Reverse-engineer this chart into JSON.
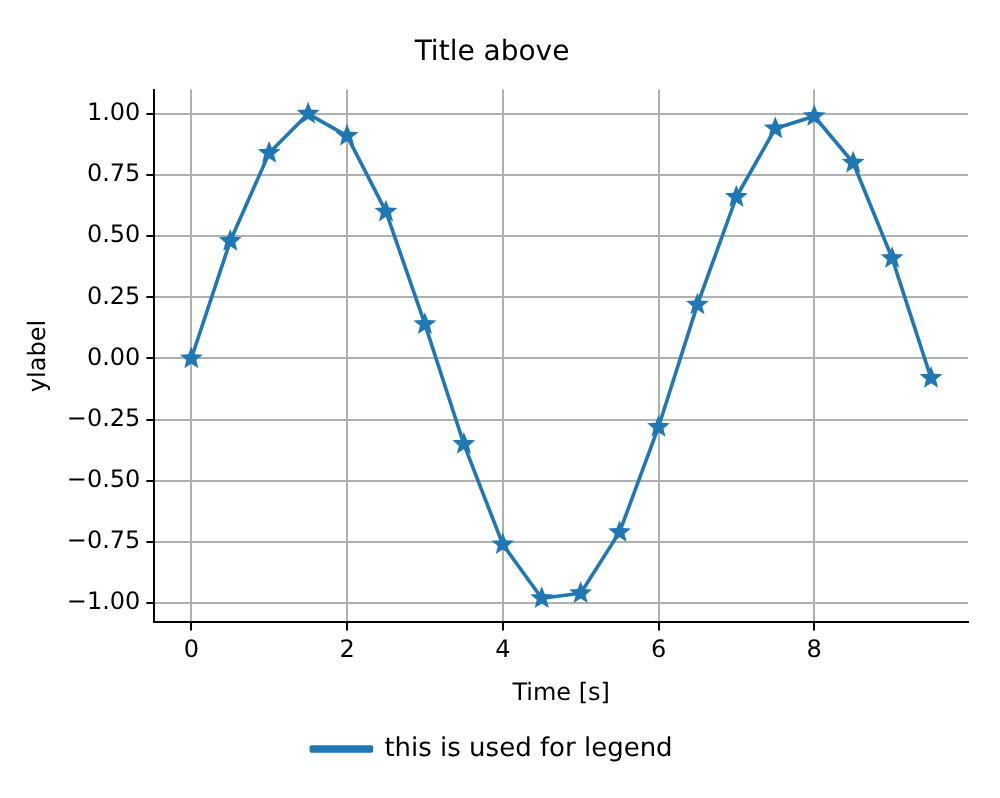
{
  "chart_data": {
    "type": "line",
    "title": "Title above",
    "xlabel": "Time [s]",
    "ylabel": "ylabel",
    "x": [
      0,
      0.5,
      1,
      1.5,
      2,
      2.5,
      3,
      3.5,
      4,
      4.5,
      5,
      5.5,
      6,
      6.5,
      7,
      7.5,
      8,
      8.5,
      9,
      9.5
    ],
    "series": [
      {
        "name": "this is used for legend",
        "color": "#1f77b4",
        "values": [
          0,
          0.48,
          0.84,
          1.0,
          0.91,
          0.6,
          0.14,
          -0.35,
          -0.76,
          -0.98,
          -0.96,
          -0.71,
          -0.28,
          0.22,
          0.66,
          0.94,
          0.99,
          0.8,
          0.41,
          -0.08
        ]
      }
    ],
    "xlim": [
      -0.475,
      9.975
    ],
    "xticks": [
      0,
      2,
      4,
      6,
      8
    ],
    "ylim": [
      -1.079,
      1.099
    ],
    "yticks": [
      {
        "value": -1,
        "label": "−1.00"
      },
      {
        "value": -0.75,
        "label": "−0.75"
      },
      {
        "value": -0.5,
        "label": "−0.50"
      },
      {
        "value": -0.25,
        "label": "−0.25"
      },
      {
        "value": 0,
        "label": "0.00"
      },
      {
        "value": 0.25,
        "label": "0.25"
      },
      {
        "value": 0.5,
        "label": "0.50"
      },
      {
        "value": 0.75,
        "label": "0.75"
      },
      {
        "value": 1,
        "label": "1.00"
      }
    ],
    "grid": true,
    "legend": "bottom",
    "marker": "star",
    "line_style": "solid"
  }
}
